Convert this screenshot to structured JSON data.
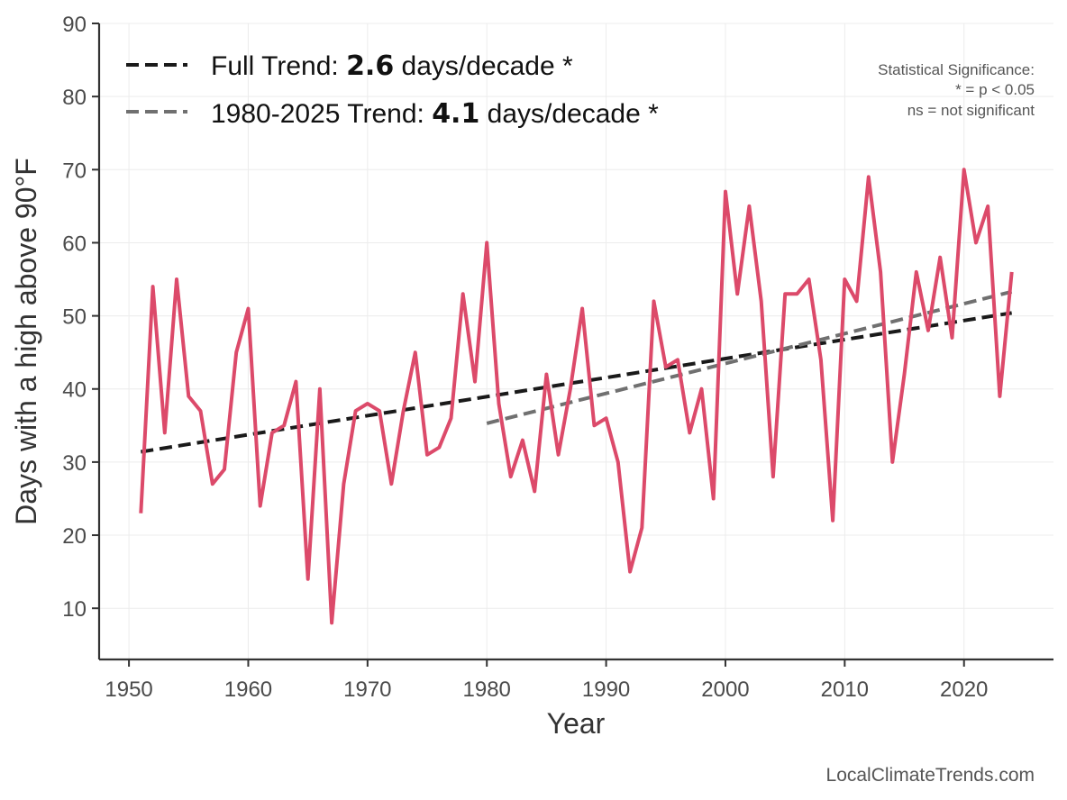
{
  "chart_data": {
    "type": "line",
    "xlabel": "Year",
    "ylabel": "Days with a high above 90°F",
    "xlim": [
      1947.5,
      2027.5
    ],
    "ylim": [
      3,
      90
    ],
    "xticks": [
      1950,
      1960,
      1970,
      1980,
      1990,
      2000,
      2010,
      2020
    ],
    "yticks": [
      10,
      20,
      30,
      40,
      50,
      60,
      70,
      80,
      90
    ],
    "grid": true,
    "series": [
      {
        "name": "Days above 90°F",
        "color": "#dc4a6a",
        "x": [
          1951,
          1952,
          1953,
          1954,
          1955,
          1956,
          1957,
          1958,
          1959,
          1960,
          1961,
          1962,
          1963,
          1964,
          1965,
          1966,
          1967,
          1968,
          1969,
          1970,
          1971,
          1972,
          1973,
          1974,
          1975,
          1976,
          1977,
          1978,
          1979,
          1980,
          1981,
          1982,
          1983,
          1984,
          1985,
          1986,
          1987,
          1988,
          1989,
          1990,
          1991,
          1992,
          1993,
          1994,
          1995,
          1996,
          1997,
          1998,
          1999,
          2000,
          2001,
          2002,
          2003,
          2004,
          2005,
          2006,
          2007,
          2008,
          2009,
          2010,
          2011,
          2012,
          2013,
          2014,
          2015,
          2016,
          2017,
          2018,
          2019,
          2020,
          2021,
          2022,
          2023,
          2024
        ],
        "y": [
          23,
          54,
          34,
          55,
          39,
          37,
          27,
          29,
          45,
          51,
          24,
          34,
          35,
          41,
          14,
          40,
          8,
          27,
          37,
          38,
          37,
          27,
          37,
          45,
          31,
          32,
          36,
          53,
          41,
          60,
          38,
          28,
          33,
          26,
          42,
          31,
          40,
          51,
          35,
          36,
          30,
          15,
          21,
          52,
          43,
          44,
          34,
          40,
          25,
          67,
          53,
          65,
          52,
          28,
          53,
          53,
          55,
          44,
          22,
          55,
          52,
          69,
          56,
          30,
          42,
          56,
          48,
          58,
          47,
          70,
          60,
          65,
          39,
          56
        ]
      }
    ],
    "trends": [
      {
        "name": "Full Trend",
        "color": "#1a1a1a",
        "x": [
          1951,
          2024
        ],
        "y": [
          31.4,
          50.4
        ],
        "label_prefix": "Full Trend: ",
        "rate": "2.6",
        "label_suffix": " days/decade *"
      },
      {
        "name": "1980-2025 Trend",
        "color": "#707070",
        "x": [
          1980,
          2024
        ],
        "y": [
          35.3,
          53.3
        ],
        "label_prefix": "1980-2025 Trend: ",
        "rate": "4.1",
        "label_suffix": " days/decade *"
      }
    ],
    "legend_position": "top-left",
    "annotation": {
      "title": "Statistical Significance:",
      "line1": "* = p < 0.05",
      "line2": "ns = not significant"
    },
    "credit": "LocalClimateTrends.com"
  }
}
